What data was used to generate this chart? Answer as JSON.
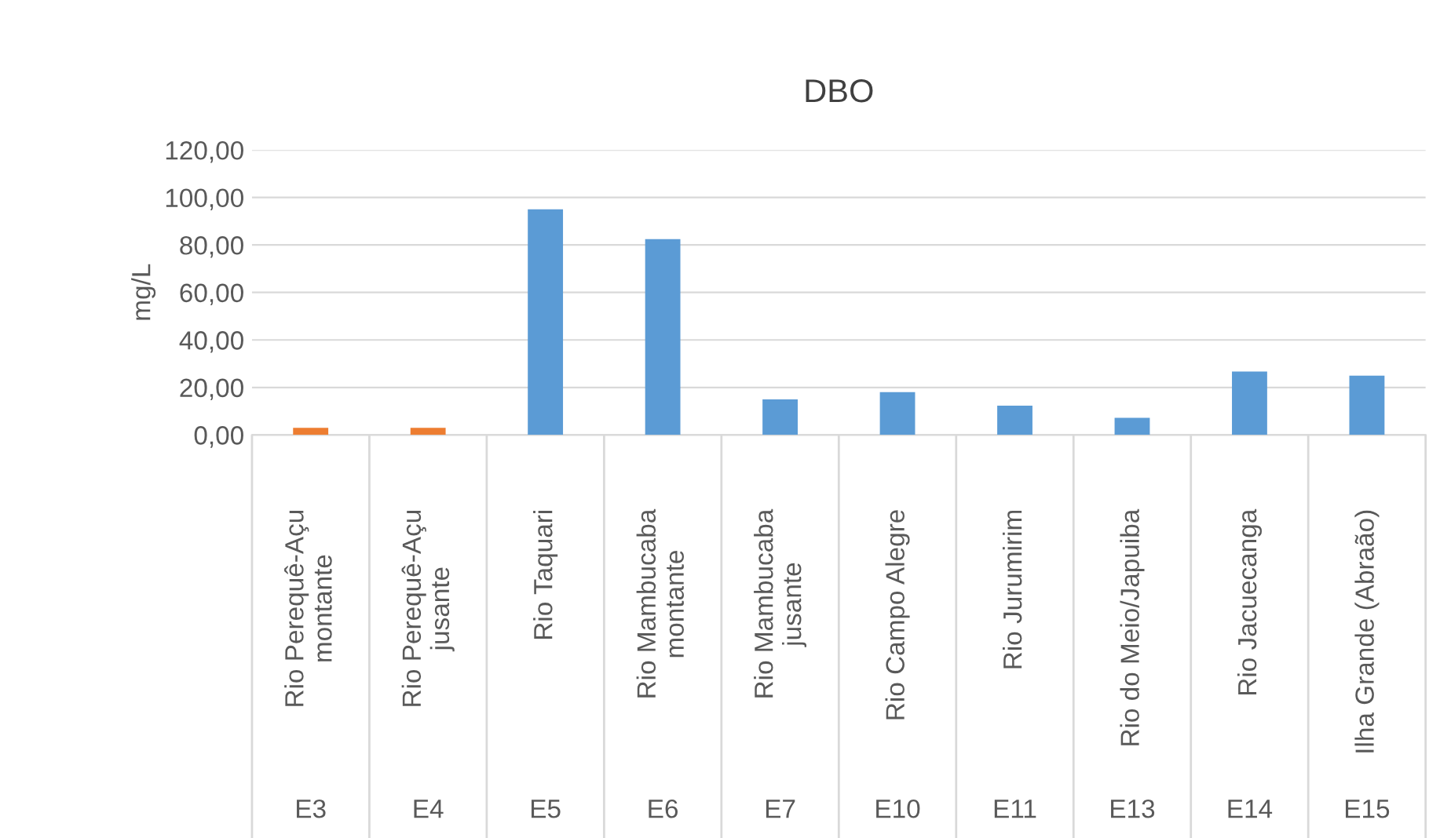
{
  "chart_data": {
    "type": "bar",
    "title": "DBO",
    "ylabel": "mg/L",
    "categories": [
      "Rio Perequê-Açu\nmontante",
      "Rio Perequê-Açu\njusante",
      "Rio Taquari",
      "Rio Mambucaba\nmontante",
      "Rio Mambucaba\njusante",
      "Rio Campo Alegre",
      "Rio Jurumirim",
      "Rio do Meio/Japuiba",
      "Rio Jacuecanga",
      "Ilha Grande (Abraão)"
    ],
    "values": [
      3,
      3,
      95,
      82.5,
      15,
      18,
      12.3,
      7.2,
      26.7,
      25
    ],
    "colors": [
      "#ed7d31",
      "#ed7d31",
      "#5b9bd5",
      "#5b9bd5",
      "#5b9bd5",
      "#5b9bd5",
      "#5b9bd5",
      "#5b9bd5",
      "#5b9bd5",
      "#5b9bd5"
    ],
    "ylim": [
      0,
      120
    ],
    "yticks": [
      {
        "value": 0,
        "label": "0,00"
      },
      {
        "value": 20,
        "label": "20,00"
      },
      {
        "value": 40,
        "label": "40,00"
      },
      {
        "value": 60,
        "label": "60,00"
      },
      {
        "value": 80,
        "label": "80,00"
      },
      {
        "value": 100,
        "label": "100,00"
      },
      {
        "value": 120,
        "label": "120,00"
      }
    ],
    "grid": "y",
    "legend": false,
    "annotations": [
      "E3",
      "E4",
      "E5",
      "E6",
      "E7",
      "E10",
      "E11",
      "E13",
      "E14",
      "E15"
    ]
  }
}
